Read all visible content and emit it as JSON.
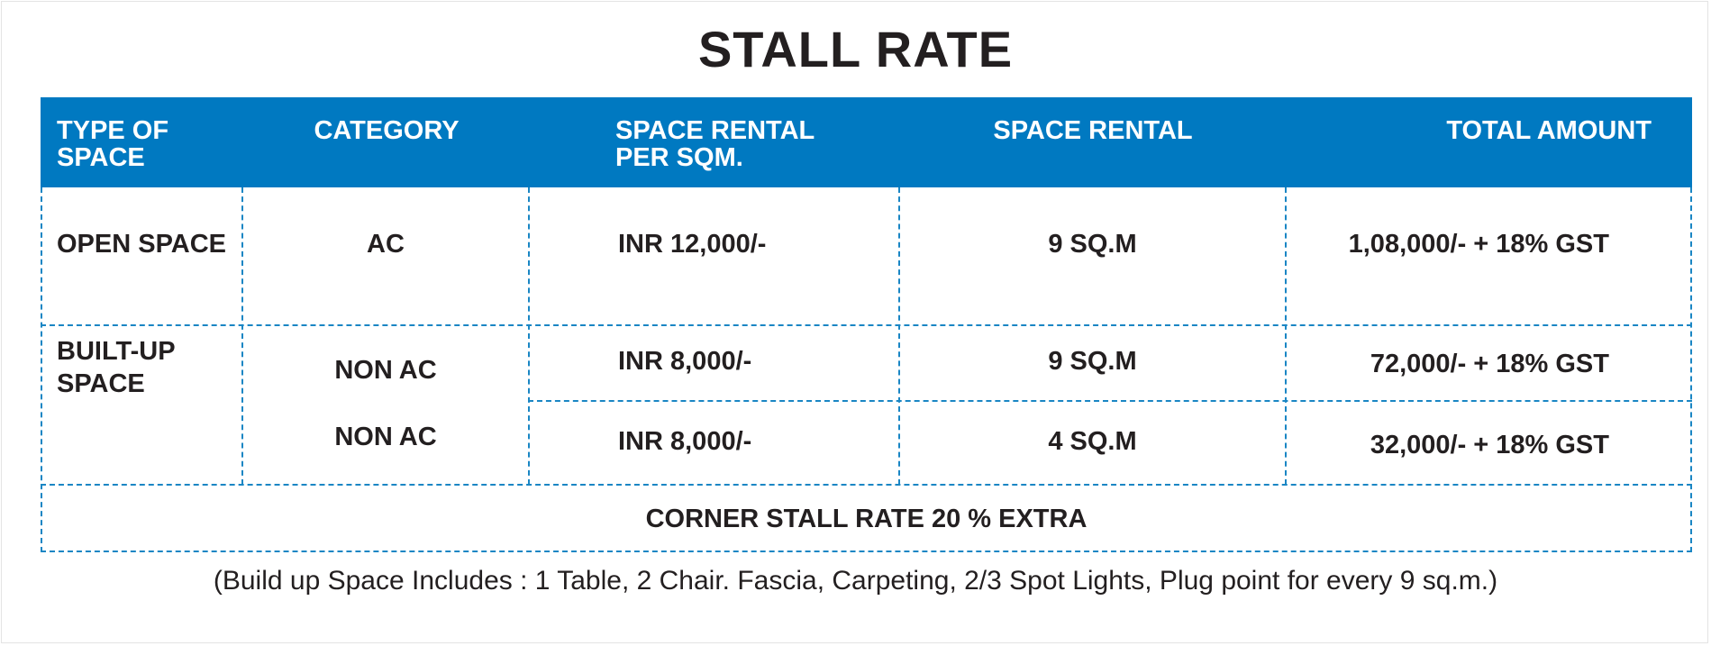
{
  "title": "STALL RATE",
  "headers": {
    "type_of_space": "TYPE OF SPACE",
    "category": "CATEGORY",
    "rental_per_sqm": "SPACE RENTAL PER SQM.",
    "space_rental": "SPACE RENTAL",
    "total_amount": "TOTAL AMOUNT"
  },
  "rows": [
    {
      "type": "OPEN SPACE",
      "category": "AC",
      "rate": "INR 12,000/-",
      "space": "9 SQ.M",
      "total": "1,08,000/- + 18% GST"
    },
    {
      "type": "BUILT-UP SPACE",
      "category": "NON AC",
      "rate": "INR 8,000/-",
      "space": "9 SQ.M",
      "total": "72,000/- + 18% GST"
    },
    {
      "category": "NON AC",
      "rate": "INR 8,000/-",
      "space": "4 SQ.M",
      "total": "32,000/- + 18% GST"
    }
  ],
  "footer_row": "CORNER STALL RATE 20 % EXTRA",
  "note": "(Build up Space Includes : 1 Table, 2 Chair. Fascia, Carpeting, 2/3 Spot Lights, Plug point  for every 9 sq.m.)",
  "colors": {
    "header_bg": "#0079c1",
    "border": "#1a86c4",
    "text": "#231f20"
  }
}
